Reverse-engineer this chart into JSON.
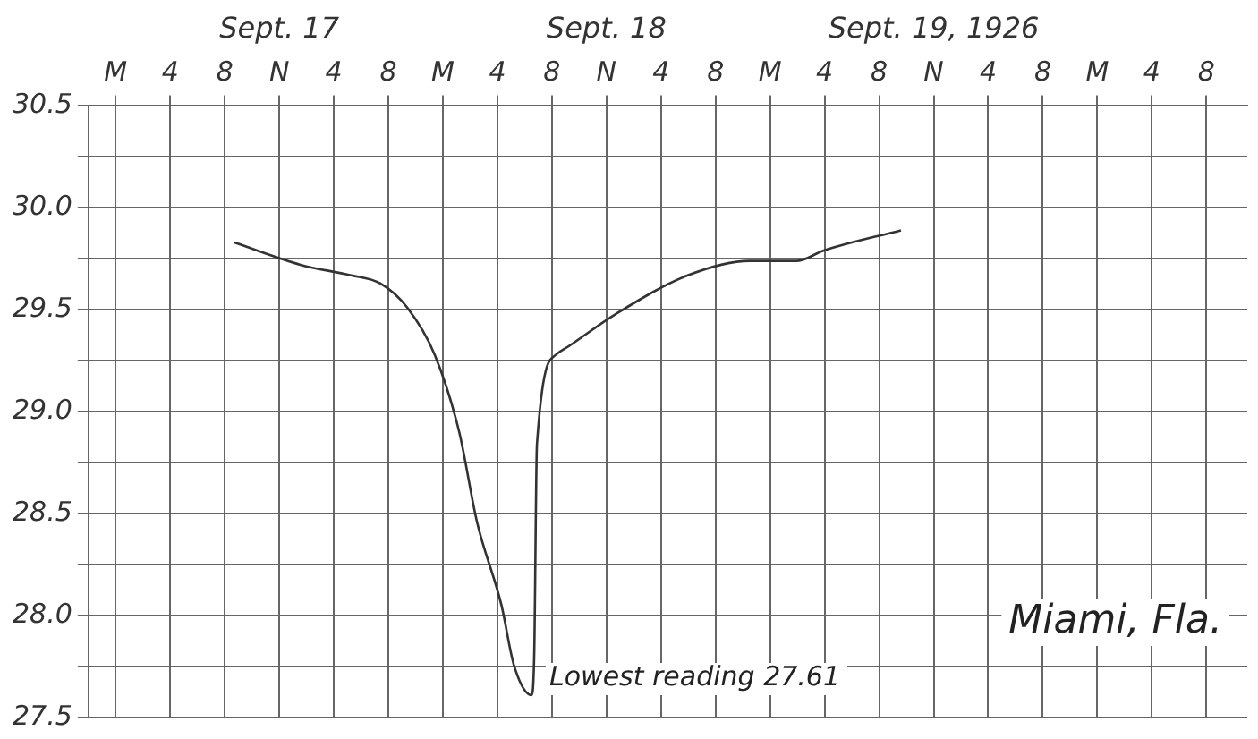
{
  "chart_data": {
    "type": "line",
    "x": [
      "1926-09-17T08:42",
      "1926-09-17T13:36",
      "1926-09-17T17:12",
      "1926-09-17T19:24",
      "1926-09-17T21:24",
      "1926-09-17T23:24",
      "1926-09-18T01:12",
      "1926-09-18T02:30",
      "1926-09-18T04:18",
      "1926-09-18T05:12",
      "1926-09-18T06:30",
      "1926-09-18T06:42",
      "1926-09-18T06:54",
      "1926-09-18T08:18",
      "1926-09-18T09:12",
      "1926-09-18T12:42",
      "1926-09-18T18:00",
      "1926-09-18T22:30",
      "1926-09-19T02:00",
      "1926-09-19T03:54",
      "1926-09-19T09:36"
    ],
    "series": [
      {
        "color": "#333333",
        "values": [
          29.83,
          29.72,
          29.67,
          29.63,
          29.51,
          29.28,
          28.9,
          28.46,
          28.05,
          27.76,
          27.61,
          27.81,
          28.84,
          29.28,
          29.32,
          29.48,
          29.67,
          29.74,
          29.74,
          29.79,
          29.89
        ]
      }
    ],
    "xlim": [
      "1926-09-16T22:00",
      "1926-09-20T11:00"
    ],
    "xticks": [
      {
        "value": "1926-09-17T00:00",
        "label": "M"
      },
      {
        "value": "1926-09-17T04:00",
        "label": "4"
      },
      {
        "value": "1926-09-17T08:00",
        "label": "8"
      },
      {
        "value": "1926-09-17T12:00",
        "label": "N"
      },
      {
        "value": "1926-09-17T16:00",
        "label": "4"
      },
      {
        "value": "1926-09-17T20:00",
        "label": "8"
      },
      {
        "value": "1926-09-18T00:00",
        "label": "M"
      },
      {
        "value": "1926-09-18T04:00",
        "label": "4"
      },
      {
        "value": "1926-09-18T08:00",
        "label": "8"
      },
      {
        "value": "1926-09-18T12:00",
        "label": "N"
      },
      {
        "value": "1926-09-18T16:00",
        "label": "4"
      },
      {
        "value": "1926-09-18T20:00",
        "label": "8"
      },
      {
        "value": "1926-09-19T00:00",
        "label": "M"
      },
      {
        "value": "1926-09-19T04:00",
        "label": "4"
      },
      {
        "value": "1926-09-19T08:00",
        "label": "8"
      },
      {
        "value": "1926-09-19T12:00",
        "label": "N"
      },
      {
        "value": "1926-09-19T16:00",
        "label": "4"
      },
      {
        "value": "1926-09-19T20:00",
        "label": "8"
      },
      {
        "value": "1926-09-20T00:00",
        "label": "M"
      },
      {
        "value": "1926-09-20T04:00",
        "label": "4"
      },
      {
        "value": "1926-09-20T08:00",
        "label": "8"
      }
    ],
    "x2lim": [
      "1926-09-16T22:00",
      "1926-09-20T11:00"
    ],
    "x2ticks": [
      {
        "value": "1926-09-17T12:00",
        "label": "Sept. 17"
      },
      {
        "value": "1926-09-18T12:00",
        "label": "Sept. 18"
      },
      {
        "value": "1926-09-19T12:00",
        "label": "Sept. 19, 1926"
      }
    ],
    "ylim": [
      27.5,
      30.5
    ],
    "yticks": [
      27.5,
      {
        "value": 27.75,
        "label": null
      },
      {
        "value": 28,
        "label": "28.0"
      },
      {
        "value": 28.25,
        "label": null
      },
      28.5,
      {
        "value": 28.75,
        "label": null
      },
      {
        "value": 29,
        "label": "29.0"
      },
      {
        "value": 29.25,
        "label": null
      },
      29.5,
      {
        "value": 29.75,
        "label": null
      },
      {
        "value": 30,
        "label": "30.0"
      },
      {
        "value": 30.25,
        "label": null
      },
      30.5
    ],
    "grid": true,
    "legend": false,
    "marker": "none",
    "line_style": "solid",
    "annotations": [
      {
        "text": "Lowest reading 27.61",
        "x": "1926-09-18T06:30",
        "y": 27.61
      },
      "Miami, Fla."
    ]
  }
}
